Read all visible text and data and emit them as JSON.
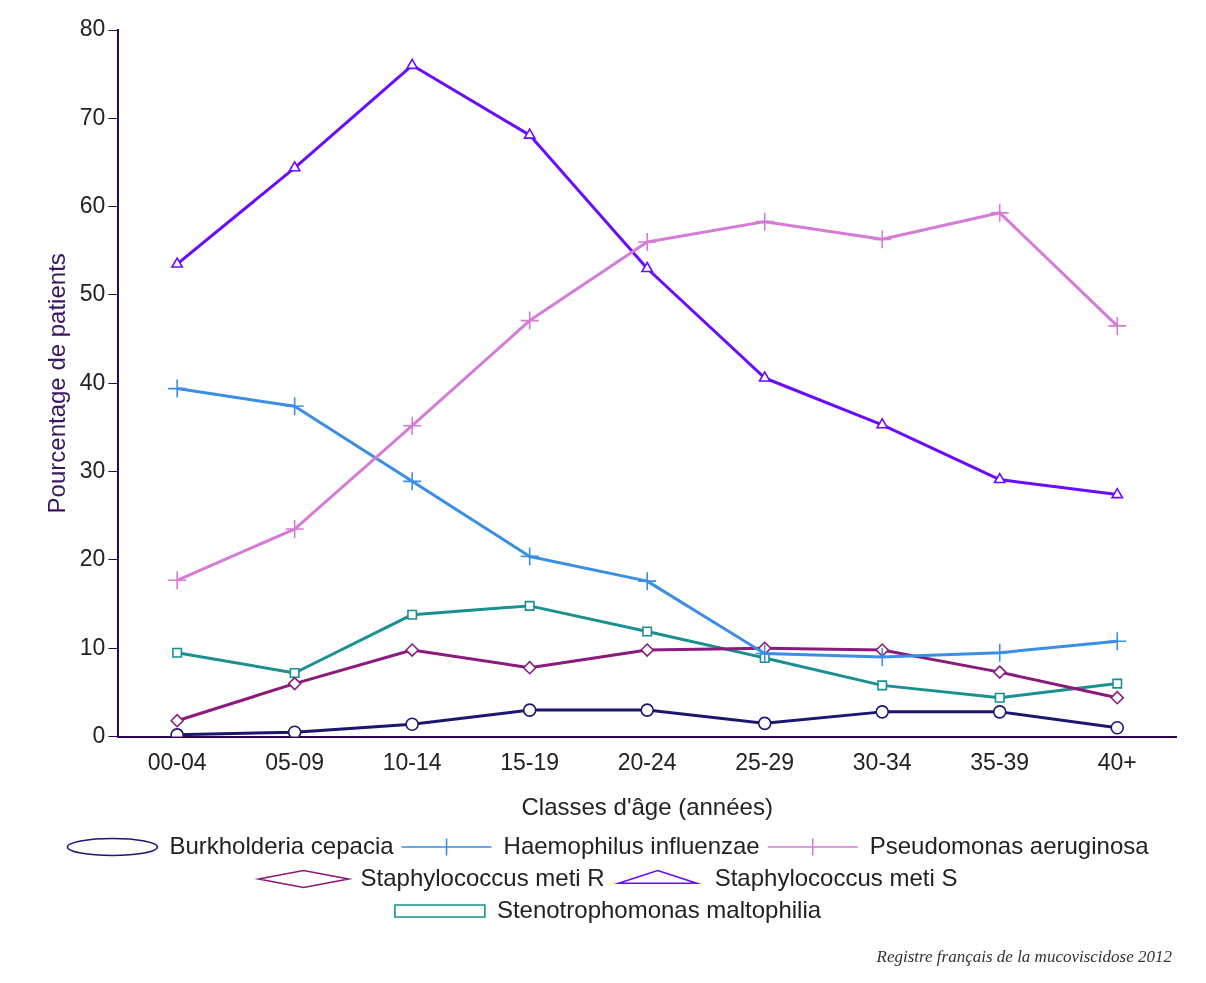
{
  "chart_data": {
    "type": "line",
    "xlabel": "Classes d'âge (années)",
    "ylabel": "Pourcentage de patients",
    "categories": [
      "00-04",
      "05-09",
      "10-14",
      "15-19",
      "20-24",
      "25-29",
      "30-34",
      "35-39",
      "40+"
    ],
    "ylim": [
      0,
      80
    ],
    "yticks": [
      0,
      10,
      20,
      30,
      40,
      50,
      60,
      70,
      80
    ],
    "grid": false,
    "legend": "bottom",
    "annotations": [
      "Registre français de la mucoviscidose 2012"
    ],
    "series": [
      {
        "name": "Burkholderia cepacia",
        "color": "#1c1670",
        "marker": "circle",
        "values": [
          0.2,
          0.5,
          1.4,
          3,
          3,
          1.5,
          2.8,
          2.8,
          1.0
        ]
      },
      {
        "name": "Pseudomonas aeruginosa",
        "color": "#d67bd6",
        "marker": "cross",
        "values": [
          17.7,
          23.5,
          35.2,
          47.1,
          56,
          58.3,
          56.3,
          59.3,
          46.5
        ]
      },
      {
        "name": "Staphylococcus meti S",
        "color": "#6a0dff",
        "marker": "triangle",
        "values": [
          53.5,
          64.4,
          76,
          68.1,
          53,
          40.6,
          35.3,
          29.1,
          27.4
        ]
      },
      {
        "name": "Haemophilus influenzae",
        "color": "#3a8ee6",
        "marker": "cross",
        "values": [
          39.4,
          37.4,
          28.9,
          20.4,
          17.6,
          9.4,
          9.0,
          9.5,
          10.8
        ]
      },
      {
        "name": "Staphylococcus meti R",
        "color": "#8b1a7b",
        "marker": "diamond",
        "values": [
          1.8,
          6.0,
          9.8,
          7.8,
          9.8,
          10,
          9.8,
          7.3,
          4.4
        ]
      },
      {
        "name": "Stenotrophomonas maltophilia",
        "color": "#1a9090",
        "marker": "square",
        "values": [
          9.5,
          7.2,
          13.8,
          14.8,
          11.9,
          8.9,
          5.8,
          4.4,
          6.0
        ]
      }
    ]
  }
}
